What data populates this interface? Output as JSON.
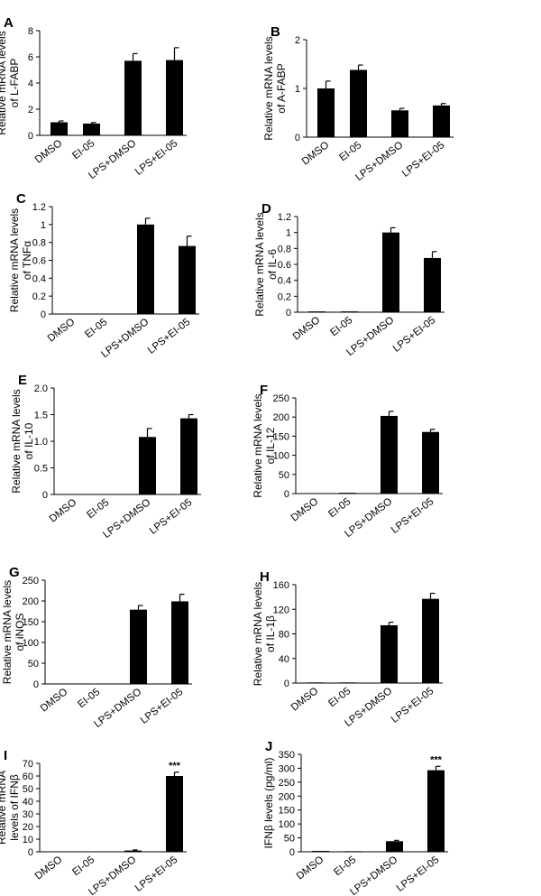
{
  "chart_data": [
    {
      "letter": "A",
      "type": "bar",
      "ylabel_lines": [
        "Relative mRNA levels",
        "of L-FABP"
      ],
      "categories": [
        "DMSO",
        "EI-05",
        "LPS+DMSO",
        "LPS+EI-05"
      ],
      "values": [
        1.0,
        0.9,
        5.7,
        5.75
      ],
      "errors": [
        0.1,
        0.08,
        0.55,
        0.95
      ],
      "ylim": [
        0,
        8
      ],
      "yticks": [
        "0",
        "2",
        "4",
        "6",
        "8"
      ],
      "annotations": [
        "",
        "",
        "",
        ""
      ]
    },
    {
      "letter": "B",
      "type": "bar",
      "ylabel_lines": [
        "Relative mRNA levels",
        "of A-FABP"
      ],
      "categories": [
        "DMSO",
        "EI-05",
        "LPS+DMSO",
        "LPS+EI-05"
      ],
      "values": [
        1.0,
        1.38,
        0.55,
        0.65
      ],
      "errors": [
        0.15,
        0.1,
        0.04,
        0.04
      ],
      "ylim": [
        0,
        2
      ],
      "yticks": [
        "0",
        "1",
        "2"
      ],
      "annotations": [
        "",
        "",
        "",
        ""
      ]
    },
    {
      "letter": "C",
      "type": "bar",
      "ylabel_lines": [
        "Relative mRNA levels",
        "of TNFα"
      ],
      "categories": [
        "DMSO",
        "EI-05",
        "LPS+DMSO",
        "LPS+EI-05"
      ],
      "values": [
        0.005,
        0.005,
        1.0,
        0.76
      ],
      "errors": [
        0,
        0,
        0.07,
        0.11
      ],
      "ylim": [
        0,
        1.2
      ],
      "yticks": [
        "0",
        "0.2",
        "0.4",
        "0.6",
        "0.8",
        "1",
        "1.2"
      ],
      "annotations": [
        "",
        "",
        "",
        ""
      ]
    },
    {
      "letter": "D",
      "type": "bar",
      "ylabel_lines": [
        "Relative mRNA levels",
        "of IL-6"
      ],
      "categories": [
        "DMSO",
        "EI-05",
        "LPS+DMSO",
        "LPS+EI-05"
      ],
      "values": [
        0.01,
        0.01,
        1.0,
        0.68
      ],
      "errors": [
        0,
        0,
        0.06,
        0.08
      ],
      "ylim": [
        0,
        1.2
      ],
      "yticks": [
        "0",
        "0.2",
        "0.4",
        "0.6",
        "0.8",
        "1",
        "1.2"
      ],
      "annotations": [
        "",
        "",
        "",
        ""
      ]
    },
    {
      "letter": "E",
      "type": "bar",
      "ylabel_lines": [
        "Relative mRNA levels",
        "of IL-10"
      ],
      "categories": [
        "DMSO",
        "EI-05",
        "LPS+DMSO",
        "LPS+EI-05"
      ],
      "values": [
        0,
        0,
        1.08,
        1.43
      ],
      "errors": [
        0,
        0,
        0.16,
        0.07
      ],
      "ylim": [
        0,
        2.0
      ],
      "yticks": [
        "0",
        "0.5",
        "1.0",
        "1.5",
        "2.0"
      ],
      "annotations": [
        "",
        "",
        "",
        ""
      ]
    },
    {
      "letter": "F",
      "type": "bar",
      "ylabel_lines": [
        "Relative mRNA levels",
        "of IL-12"
      ],
      "categories": [
        "DMSO",
        "EI-05",
        "LPS+DMSO",
        "LPS+EI-05"
      ],
      "values": [
        1,
        2,
        203,
        161
      ],
      "errors": [
        0,
        0,
        12,
        7
      ],
      "ylim": [
        0,
        250
      ],
      "yticks": [
        "0",
        "50",
        "100",
        "150",
        "200",
        "250"
      ],
      "annotations": [
        "",
        "",
        "",
        ""
      ]
    },
    {
      "letter": "G",
      "type": "bar",
      "ylabel_lines": [
        "Relative mRNA levels",
        "of iNOS"
      ],
      "categories": [
        "DMSO",
        "EI-05",
        "LPS+DMSO",
        "LPS+EI-05"
      ],
      "values": [
        1,
        1,
        179,
        199
      ],
      "errors": [
        0,
        0,
        10,
        17
      ],
      "ylim": [
        0,
        250
      ],
      "yticks": [
        "0",
        "50",
        "100",
        "150",
        "200",
        "250"
      ],
      "annotations": [
        "",
        "",
        "",
        ""
      ]
    },
    {
      "letter": "H",
      "type": "bar",
      "ylabel_lines": [
        "Relative mRNA levels",
        "of IL-1β"
      ],
      "categories": [
        "DMSO",
        "EI-05",
        "LPS+DMSO",
        "LPS+EI-05"
      ],
      "values": [
        1,
        1,
        94,
        137
      ],
      "errors": [
        0,
        0,
        5,
        9
      ],
      "ylim": [
        0,
        160
      ],
      "yticks": [
        "0",
        "40",
        "80",
        "120",
        "160"
      ],
      "annotations": [
        "",
        "",
        "",
        ""
      ]
    },
    {
      "letter": "I",
      "type": "bar",
      "ylabel_lines": [
        "Relative mRNA",
        "levels of IFNβ"
      ],
      "categories": [
        "DMSO",
        "EI-05",
        "LPS+DMSO",
        "LPS+EI-05"
      ],
      "values": [
        0,
        0,
        1,
        60
      ],
      "errors": [
        0,
        0,
        0.5,
        3
      ],
      "ylim": [
        0,
        70
      ],
      "yticks": [
        "0",
        "10",
        "20",
        "30",
        "40",
        "50",
        "60",
        "70"
      ],
      "annotations": [
        "",
        "",
        "",
        "***"
      ]
    },
    {
      "letter": "J",
      "type": "bar",
      "ylabel_lines": [
        "IFNβ levels (pg/ml)"
      ],
      "categories": [
        "DMSO",
        "EI-05",
        "LPS+DMSO",
        "LPS+EI-05"
      ],
      "values": [
        3,
        2,
        38,
        293
      ],
      "errors": [
        0,
        0,
        3,
        14
      ],
      "ylim": [
        0,
        350
      ],
      "yticks": [
        "0",
        "50",
        "100",
        "150",
        "200",
        "250",
        "300",
        "350"
      ],
      "annotations": [
        "",
        "",
        "",
        "***"
      ]
    }
  ]
}
